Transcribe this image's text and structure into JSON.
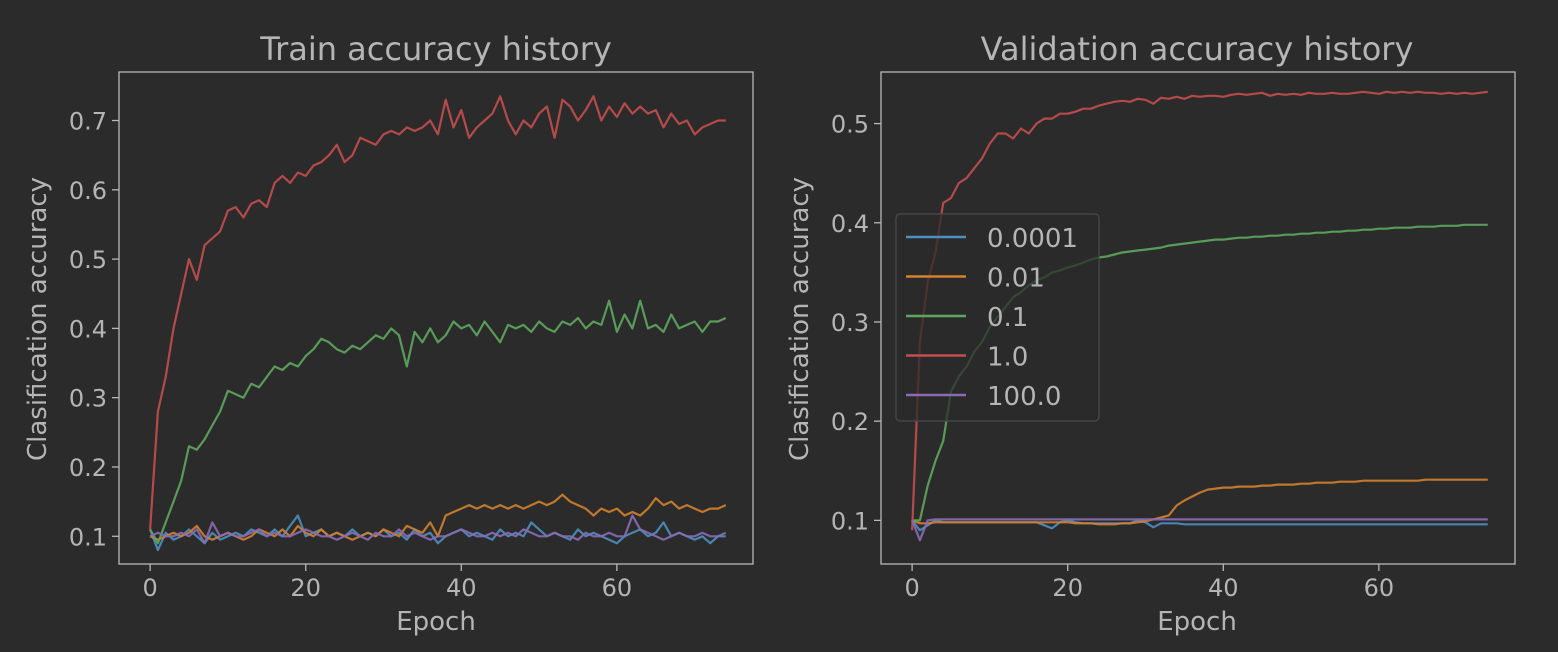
{
  "chart_data": [
    {
      "type": "line",
      "title": "Train accuracy history",
      "xlabel": "Epoch",
      "ylabel": "Clasification accuracy",
      "xlim": [
        -4,
        77.5
      ],
      "ylim": [
        0.06,
        0.77
      ],
      "xticks": [
        "0",
        "20",
        "40",
        "60"
      ],
      "yticks": [
        "0.1",
        "0.2",
        "0.3",
        "0.4",
        "0.5",
        "0.6",
        "0.7"
      ],
      "grid": false,
      "series": [
        {
          "name": "0.0001",
          "color": "#4c8fc0",
          "values": [
            0.11,
            0.08,
            0.105,
            0.095,
            0.1,
            0.11,
            0.1,
            0.09,
            0.105,
            0.095,
            0.1,
            0.105,
            0.1,
            0.11,
            0.105,
            0.1,
            0.11,
            0.1,
            0.115,
            0.13,
            0.1,
            0.105,
            0.11,
            0.1,
            0.105,
            0.1,
            0.11,
            0.1,
            0.105,
            0.1,
            0.11,
            0.1,
            0.105,
            0.095,
            0.11,
            0.1,
            0.105,
            0.09,
            0.1,
            0.105,
            0.11,
            0.1,
            0.105,
            0.1,
            0.095,
            0.11,
            0.1,
            0.105,
            0.1,
            0.12,
            0.11,
            0.1,
            0.105,
            0.1,
            0.095,
            0.11,
            0.1,
            0.105,
            0.1,
            0.095,
            0.09,
            0.1,
            0.105,
            0.11,
            0.1,
            0.105,
            0.12,
            0.1,
            0.105,
            0.1,
            0.095,
            0.1,
            0.09,
            0.1,
            0.1
          ]
        },
        {
          "name": "0.01",
          "color": "#d2812d",
          "values": [
            0.1,
            0.095,
            0.1,
            0.105,
            0.1,
            0.105,
            0.115,
            0.1,
            0.095,
            0.1,
            0.105,
            0.1,
            0.095,
            0.1,
            0.11,
            0.105,
            0.1,
            0.11,
            0.1,
            0.115,
            0.105,
            0.1,
            0.11,
            0.1,
            0.105,
            0.1,
            0.095,
            0.1,
            0.105,
            0.1,
            0.11,
            0.105,
            0.1,
            0.115,
            0.11,
            0.105,
            0.12,
            0.1,
            0.13,
            0.135,
            0.14,
            0.145,
            0.14,
            0.145,
            0.14,
            0.145,
            0.14,
            0.145,
            0.14,
            0.145,
            0.15,
            0.145,
            0.15,
            0.16,
            0.15,
            0.145,
            0.14,
            0.13,
            0.14,
            0.135,
            0.14,
            0.13,
            0.135,
            0.13,
            0.14,
            0.155,
            0.145,
            0.15,
            0.14,
            0.145,
            0.14,
            0.135,
            0.14,
            0.14,
            0.145
          ]
        },
        {
          "name": "0.1",
          "color": "#5ea75e",
          "values": [
            0.11,
            0.09,
            0.12,
            0.15,
            0.18,
            0.23,
            0.225,
            0.24,
            0.26,
            0.28,
            0.31,
            0.305,
            0.3,
            0.32,
            0.315,
            0.33,
            0.345,
            0.34,
            0.35,
            0.345,
            0.36,
            0.37,
            0.385,
            0.38,
            0.37,
            0.365,
            0.375,
            0.37,
            0.38,
            0.39,
            0.385,
            0.4,
            0.39,
            0.345,
            0.395,
            0.38,
            0.4,
            0.38,
            0.39,
            0.41,
            0.4,
            0.405,
            0.39,
            0.41,
            0.395,
            0.38,
            0.405,
            0.4,
            0.405,
            0.395,
            0.41,
            0.4,
            0.395,
            0.41,
            0.405,
            0.415,
            0.4,
            0.41,
            0.405,
            0.44,
            0.395,
            0.42,
            0.4,
            0.44,
            0.4,
            0.405,
            0.395,
            0.42,
            0.4,
            0.405,
            0.41,
            0.395,
            0.41,
            0.41,
            0.415
          ]
        },
        {
          "name": "1.0",
          "color": "#c44e4e",
          "values": [
            0.11,
            0.28,
            0.33,
            0.4,
            0.45,
            0.5,
            0.47,
            0.52,
            0.53,
            0.54,
            0.57,
            0.575,
            0.56,
            0.58,
            0.585,
            0.575,
            0.61,
            0.62,
            0.61,
            0.625,
            0.62,
            0.635,
            0.64,
            0.65,
            0.665,
            0.64,
            0.65,
            0.675,
            0.67,
            0.665,
            0.68,
            0.685,
            0.68,
            0.69,
            0.685,
            0.69,
            0.7,
            0.68,
            0.73,
            0.69,
            0.715,
            0.675,
            0.69,
            0.7,
            0.71,
            0.735,
            0.7,
            0.68,
            0.7,
            0.69,
            0.71,
            0.72,
            0.675,
            0.73,
            0.72,
            0.7,
            0.715,
            0.735,
            0.7,
            0.72,
            0.705,
            0.725,
            0.71,
            0.72,
            0.71,
            0.715,
            0.69,
            0.71,
            0.695,
            0.7,
            0.68,
            0.69,
            0.695,
            0.7,
            0.7
          ]
        },
        {
          "name": "100.0",
          "color": "#8a6bb5",
          "values": [
            0.1,
            0.105,
            0.1,
            0.1,
            0.105,
            0.1,
            0.11,
            0.09,
            0.12,
            0.1,
            0.105,
            0.1,
            0.1,
            0.105,
            0.11,
            0.1,
            0.105,
            0.1,
            0.1,
            0.105,
            0.11,
            0.105,
            0.1,
            0.1,
            0.095,
            0.1,
            0.105,
            0.1,
            0.095,
            0.105,
            0.1,
            0.1,
            0.11,
            0.1,
            0.105,
            0.1,
            0.095,
            0.1,
            0.1,
            0.105,
            0.11,
            0.105,
            0.1,
            0.1,
            0.105,
            0.1,
            0.105,
            0.1,
            0.11,
            0.105,
            0.1,
            0.1,
            0.105,
            0.1,
            0.1,
            0.095,
            0.105,
            0.1,
            0.1,
            0.105,
            0.1,
            0.1,
            0.13,
            0.11,
            0.105,
            0.1,
            0.095,
            0.1,
            0.105,
            0.1,
            0.1,
            0.105,
            0.1,
            0.1,
            0.105
          ]
        }
      ]
    },
    {
      "type": "line",
      "title": "Validation accuracy history",
      "xlabel": "Epoch",
      "ylabel": "Clasification accuracy",
      "xlim": [
        -4,
        77.5
      ],
      "ylim": [
        0.056,
        0.552
      ],
      "xticks": [
        "0",
        "20",
        "40",
        "60"
      ],
      "yticks": [
        "0.1",
        "0.2",
        "0.3",
        "0.4",
        "0.5"
      ],
      "grid": false,
      "legend": "center-left",
      "series": [
        {
          "name": "0.0001",
          "color": "#4c8fc0",
          "values": [
            0.1,
            0.09,
            0.095,
            0.1,
            0.098,
            0.098,
            0.098,
            0.098,
            0.098,
            0.098,
            0.098,
            0.098,
            0.098,
            0.098,
            0.098,
            0.098,
            0.098,
            0.095,
            0.092,
            0.098,
            0.1,
            0.098,
            0.097,
            0.097,
            0.097,
            0.097,
            0.097,
            0.097,
            0.097,
            0.1,
            0.098,
            0.093,
            0.097,
            0.097,
            0.097,
            0.096,
            0.096,
            0.096,
            0.096,
            0.096,
            0.096,
            0.096,
            0.096,
            0.096,
            0.096,
            0.096,
            0.096,
            0.096,
            0.096,
            0.096,
            0.096,
            0.096,
            0.096,
            0.096,
            0.096,
            0.096,
            0.096,
            0.096,
            0.096,
            0.096,
            0.096,
            0.096,
            0.096,
            0.096,
            0.096,
            0.096,
            0.096,
            0.096,
            0.096,
            0.096,
            0.096,
            0.096,
            0.096,
            0.096,
            0.096
          ]
        },
        {
          "name": "0.01",
          "color": "#d2812d",
          "values": [
            0.1,
            0.097,
            0.097,
            0.098,
            0.098,
            0.098,
            0.098,
            0.098,
            0.098,
            0.098,
            0.098,
            0.098,
            0.098,
            0.098,
            0.098,
            0.098,
            0.098,
            0.098,
            0.098,
            0.098,
            0.098,
            0.097,
            0.097,
            0.097,
            0.096,
            0.096,
            0.096,
            0.097,
            0.097,
            0.098,
            0.099,
            0.101,
            0.103,
            0.105,
            0.115,
            0.12,
            0.124,
            0.128,
            0.131,
            0.132,
            0.133,
            0.133,
            0.134,
            0.134,
            0.134,
            0.135,
            0.135,
            0.136,
            0.136,
            0.136,
            0.137,
            0.137,
            0.138,
            0.138,
            0.138,
            0.139,
            0.139,
            0.139,
            0.14,
            0.14,
            0.14,
            0.14,
            0.14,
            0.14,
            0.14,
            0.14,
            0.141,
            0.141,
            0.141,
            0.141,
            0.141,
            0.141,
            0.141,
            0.141,
            0.141
          ]
        },
        {
          "name": "0.1",
          "color": "#5ea75e",
          "values": [
            0.1,
            0.1,
            0.135,
            0.16,
            0.18,
            0.23,
            0.245,
            0.255,
            0.27,
            0.28,
            0.295,
            0.305,
            0.315,
            0.325,
            0.33,
            0.337,
            0.342,
            0.345,
            0.35,
            0.352,
            0.355,
            0.357,
            0.36,
            0.363,
            0.365,
            0.366,
            0.368,
            0.37,
            0.371,
            0.372,
            0.373,
            0.374,
            0.375,
            0.377,
            0.378,
            0.379,
            0.38,
            0.381,
            0.382,
            0.383,
            0.383,
            0.384,
            0.385,
            0.385,
            0.386,
            0.386,
            0.387,
            0.387,
            0.388,
            0.388,
            0.389,
            0.389,
            0.39,
            0.39,
            0.391,
            0.391,
            0.392,
            0.392,
            0.393,
            0.393,
            0.394,
            0.394,
            0.395,
            0.395,
            0.395,
            0.396,
            0.396,
            0.396,
            0.397,
            0.397,
            0.397,
            0.398,
            0.398,
            0.398,
            0.398
          ]
        },
        {
          "name": "1.0",
          "color": "#c44e4e",
          "values": [
            0.09,
            0.28,
            0.34,
            0.37,
            0.42,
            0.425,
            0.44,
            0.445,
            0.455,
            0.465,
            0.48,
            0.49,
            0.49,
            0.485,
            0.495,
            0.49,
            0.5,
            0.505,
            0.505,
            0.51,
            0.51,
            0.512,
            0.515,
            0.515,
            0.518,
            0.52,
            0.522,
            0.523,
            0.522,
            0.525,
            0.524,
            0.52,
            0.526,
            0.525,
            0.527,
            0.525,
            0.528,
            0.527,
            0.528,
            0.528,
            0.527,
            0.529,
            0.53,
            0.529,
            0.53,
            0.531,
            0.528,
            0.53,
            0.529,
            0.53,
            0.529,
            0.531,
            0.53,
            0.53,
            0.531,
            0.53,
            0.53,
            0.531,
            0.532,
            0.531,
            0.53,
            0.532,
            0.531,
            0.532,
            0.531,
            0.532,
            0.531,
            0.531,
            0.53,
            0.531,
            0.53,
            0.531,
            0.53,
            0.531,
            0.532
          ]
        },
        {
          "name": "100.0",
          "color": "#8a6bb5",
          "values": [
            0.1,
            0.08,
            0.1,
            0.101,
            0.101,
            0.101,
            0.101,
            0.101,
            0.101,
            0.101,
            0.101,
            0.101,
            0.101,
            0.101,
            0.101,
            0.101,
            0.101,
            0.101,
            0.101,
            0.101,
            0.101,
            0.101,
            0.101,
            0.101,
            0.101,
            0.101,
            0.101,
            0.101,
            0.101,
            0.101,
            0.101,
            0.101,
            0.101,
            0.101,
            0.101,
            0.101,
            0.101,
            0.101,
            0.101,
            0.101,
            0.101,
            0.101,
            0.101,
            0.101,
            0.101,
            0.101,
            0.101,
            0.101,
            0.101,
            0.101,
            0.101,
            0.101,
            0.101,
            0.101,
            0.101,
            0.101,
            0.101,
            0.101,
            0.101,
            0.101,
            0.101,
            0.101,
            0.101,
            0.101,
            0.101,
            0.101,
            0.101,
            0.101,
            0.101,
            0.101,
            0.101,
            0.101,
            0.101,
            0.101,
            0.101
          ]
        }
      ]
    }
  ]
}
